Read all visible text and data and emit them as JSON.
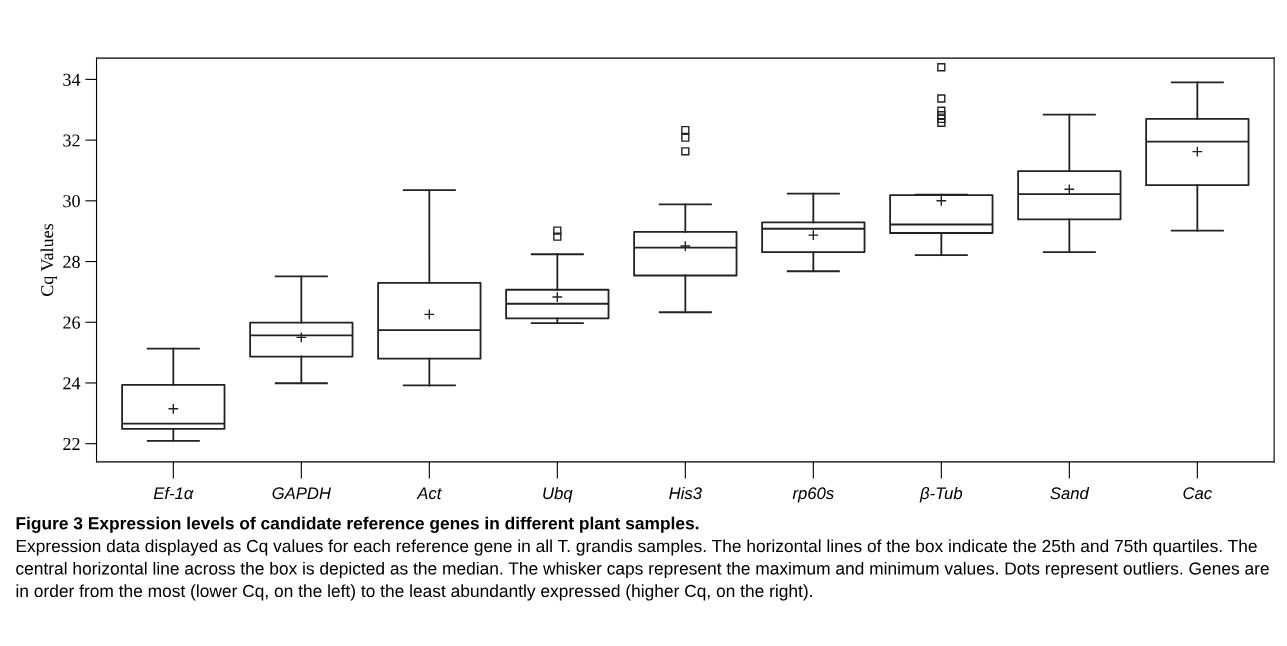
{
  "chart_data": {
    "type": "box",
    "title": "Figure 3 Expression levels of candidate reference genes in different plant samples.",
    "ylabel": "Cq Values",
    "categories": [
      "Ef-1α",
      "GAPDH",
      "Act",
      "Ubq",
      "His3",
      "rp60s",
      "β-Tub",
      "Sand",
      "Cac"
    ],
    "boxes": [
      {
        "low": 22.09,
        "q1": 22.49,
        "median": 22.66,
        "q3": 23.94,
        "high": 25.13,
        "mean": 23.15
      },
      {
        "low": 23.99,
        "q1": 24.87,
        "median": 25.57,
        "q3": 25.99,
        "high": 27.51,
        "mean": 25.5
      },
      {
        "low": 23.92,
        "q1": 24.8,
        "median": 25.74,
        "q3": 27.3,
        "high": 30.35,
        "mean": 26.26
      },
      {
        "low": 25.97,
        "q1": 26.13,
        "median": 26.61,
        "q3": 27.07,
        "high": 28.24,
        "mean": 26.83,
        "outliers": [
          28.82,
          29.02
        ]
      },
      {
        "low": 26.33,
        "q1": 27.54,
        "median": 28.46,
        "q3": 28.98,
        "high": 29.88,
        "mean": 28.51,
        "outliers": [
          31.63,
          32.08,
          32.33
        ]
      },
      {
        "low": 27.68,
        "q1": 28.31,
        "median": 29.08,
        "q3": 29.29,
        "high": 30.24,
        "mean": 28.87
      },
      {
        "low": 28.21,
        "q1": 28.94,
        "median": 29.22,
        "q3": 30.19,
        "high": 30.2,
        "mean": 30.0,
        "outliers": [
          32.57,
          32.7,
          32.82,
          32.97,
          33.37,
          34.4
        ]
      },
      {
        "low": 28.31,
        "q1": 29.39,
        "median": 30.22,
        "q3": 30.98,
        "high": 32.84,
        "mean": 30.38
      },
      {
        "low": 29.02,
        "q1": 30.52,
        "median": 31.95,
        "q3": 32.7,
        "high": 33.9,
        "mean": 31.62
      }
    ],
    "ylim": [
      21.4,
      34.7
    ],
    "yticks": [
      22,
      24,
      26,
      28,
      30,
      32,
      34
    ],
    "annotations": [
      "Expression data displayed as Cq values for each reference gene in all T. grandis samples. The horizontal lines of the box indicate the 25th and 75th quartiles. The central horizontal line across the box is depicted as the median. The whisker caps represent the maximum and minimum values. Dots represent outliers. Genes are in order from the most (lower Cq, on the left) to the least abundantly expressed (higher Cq, on the right)."
    ],
    "grid": false,
    "legend": false
  }
}
